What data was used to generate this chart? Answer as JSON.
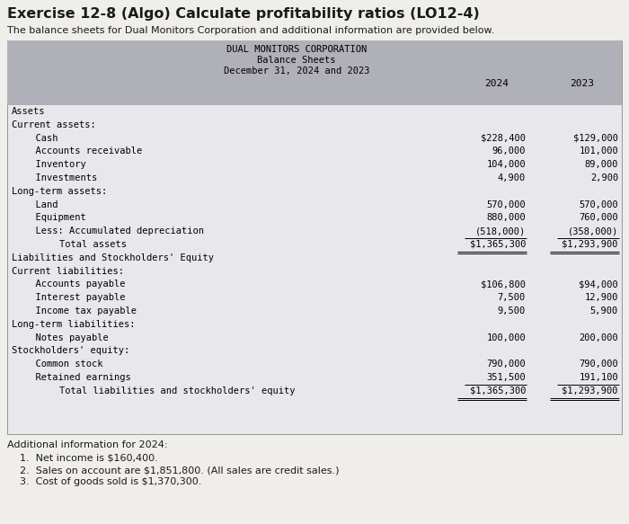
{
  "title": "Exercise 12-8 (Algo) Calculate profitability ratios (LO12-4)",
  "subtitle": "The balance sheets for Dual Monitors Corporation and additional information are provided below.",
  "table_title1": "DUAL MONITORS CORPORATION",
  "table_title2": "Balance Sheets",
  "table_title3": "December 31, 2024 and 2023",
  "col_headers": [
    "2024",
    "2023"
  ],
  "rows": [
    {
      "label": "Assets",
      "indent": 0,
      "val2024": "",
      "val2023": "",
      "underline": false,
      "is_total": false
    },
    {
      "label": "Current assets:",
      "indent": 0,
      "val2024": "",
      "val2023": "",
      "underline": false,
      "is_total": false
    },
    {
      "label": "  Cash",
      "indent": 1,
      "val2024": "$228,400",
      "val2023": "$129,000",
      "underline": false,
      "is_total": false
    },
    {
      "label": "  Accounts receivable",
      "indent": 1,
      "val2024": "96,000",
      "val2023": "101,000",
      "underline": false,
      "is_total": false
    },
    {
      "label": "  Inventory",
      "indent": 1,
      "val2024": "104,000",
      "val2023": "89,000",
      "underline": false,
      "is_total": false
    },
    {
      "label": "  Investments",
      "indent": 1,
      "val2024": "4,900",
      "val2023": "2,900",
      "underline": false,
      "is_total": false
    },
    {
      "label": "Long-term assets:",
      "indent": 0,
      "val2024": "",
      "val2023": "",
      "underline": false,
      "is_total": false
    },
    {
      "label": "  Land",
      "indent": 1,
      "val2024": "570,000",
      "val2023": "570,000",
      "underline": false,
      "is_total": false
    },
    {
      "label": "  Equipment",
      "indent": 1,
      "val2024": "880,000",
      "val2023": "760,000",
      "underline": false,
      "is_total": false
    },
    {
      "label": "  Less: Accumulated depreciation",
      "indent": 1,
      "val2024": "(518,000)",
      "val2023": "(358,000)",
      "underline": true,
      "is_total": false
    },
    {
      "label": "    Total assets",
      "indent": 2,
      "val2024": "$1,365,300",
      "val2023": "$1,293,900",
      "underline": true,
      "is_total": true
    },
    {
      "label": "Liabilities and Stockholders' Equity",
      "indent": 0,
      "val2024": "",
      "val2023": "",
      "underline": false,
      "is_total": false
    },
    {
      "label": "Current liabilities:",
      "indent": 0,
      "val2024": "",
      "val2023": "",
      "underline": false,
      "is_total": false
    },
    {
      "label": "  Accounts payable",
      "indent": 1,
      "val2024": "$106,800",
      "val2023": "$94,000",
      "underline": false,
      "is_total": false
    },
    {
      "label": "  Interest payable",
      "indent": 1,
      "val2024": "7,500",
      "val2023": "12,900",
      "underline": false,
      "is_total": false
    },
    {
      "label": "  Income tax payable",
      "indent": 1,
      "val2024": "9,500",
      "val2023": "5,900",
      "underline": false,
      "is_total": false
    },
    {
      "label": "Long-term liabilities:",
      "indent": 0,
      "val2024": "",
      "val2023": "",
      "underline": false,
      "is_total": false
    },
    {
      "label": "  Notes payable",
      "indent": 1,
      "val2024": "100,000",
      "val2023": "200,000",
      "underline": false,
      "is_total": false
    },
    {
      "label": "Stockholders' equity:",
      "indent": 0,
      "val2024": "",
      "val2023": "",
      "underline": false,
      "is_total": false
    },
    {
      "label": "  Common stock",
      "indent": 1,
      "val2024": "790,000",
      "val2023": "790,000",
      "underline": false,
      "is_total": false
    },
    {
      "label": "  Retained earnings",
      "indent": 1,
      "val2024": "351,500",
      "val2023": "191,100",
      "underline": true,
      "is_total": false
    },
    {
      "label": "    Total liabilities and stockholders' equity",
      "indent": 2,
      "val2024": "$1,365,300",
      "val2023": "$1,293,900",
      "underline": true,
      "is_total": true
    }
  ],
  "additional_info_title": "Additional information for 2024:",
  "additional_info": [
    "1.  Net income is $160,400.",
    "2.  Sales on account are $1,851,800. (All sales are credit sales.)",
    "3.  Cost of goods sold is $1,370,300."
  ],
  "header_bg": "#b0b0b8",
  "row_bg": "#e8e8ec",
  "page_bg": "#f0eeeb",
  "font_mono": "DejaVu Sans Mono",
  "font_sans": "DejaVu Sans"
}
